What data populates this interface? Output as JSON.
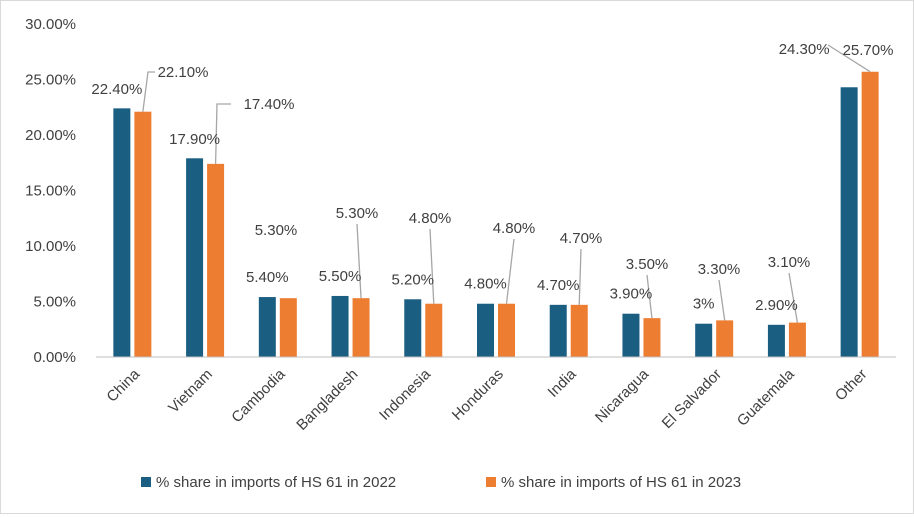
{
  "chart_data": {
    "type": "bar",
    "categories": [
      "China",
      "Vietnam",
      "Cambodia",
      "Bangladesh",
      "Indonesia",
      "Honduras",
      "India",
      "Nicaragua",
      "El Salvador",
      "Guatemala",
      "Other"
    ],
    "series": [
      {
        "name": "% share in imports of HS 61 in 2022",
        "color": "#1a5e82",
        "values": [
          22.4,
          17.9,
          5.4,
          5.5,
          5.2,
          4.8,
          4.7,
          3.9,
          3.0,
          2.9,
          24.3
        ],
        "labels": [
          "22.40%",
          "17.90%",
          "5.40%",
          "5.50%",
          "5.20%",
          "4.80%",
          "4.70%",
          "3.90%",
          "3%",
          "2.90%",
          "24.30%"
        ]
      },
      {
        "name": "% share in imports of HS 61 in 2023",
        "color": "#ed7d31",
        "values": [
          22.1,
          17.4,
          5.3,
          5.3,
          4.8,
          4.8,
          4.7,
          3.5,
          3.3,
          3.1,
          25.7
        ],
        "labels": [
          "22.10%",
          "17.40%",
          "5.30%",
          "5.30%",
          "4.80%",
          "4.80%",
          "4.70%",
          "3.50%",
          "3.30%",
          "3.10%",
          "25.70%"
        ]
      }
    ],
    "ylim": [
      0,
      30
    ],
    "y_ticks": [
      "0.00%",
      "5.00%",
      "10.00%",
      "15.00%",
      "20.00%",
      "25.00%",
      "30.00%"
    ],
    "grid": false,
    "legend_position": "bottom"
  }
}
